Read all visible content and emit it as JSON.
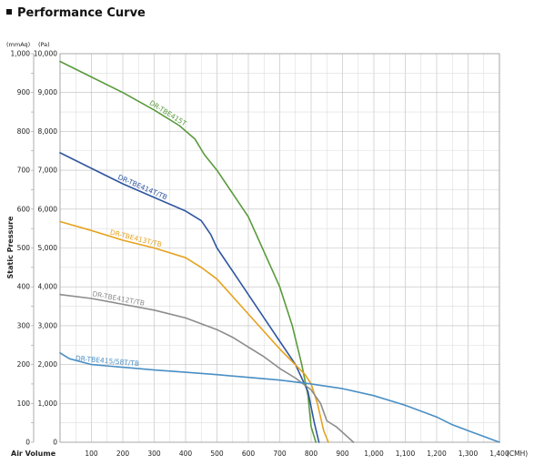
{
  "chart_data": {
    "type": "line",
    "title": "Performance Curve",
    "xlabel": "Air Volume",
    "ylabel": "Static Pressure",
    "x_unit": "(CMH)",
    "y_unit_mm": "(mmAq)",
    "y_unit_pa": "(Pa)",
    "xlim": [
      0,
      1400
    ],
    "ylim": [
      0,
      1000
    ],
    "grid": true,
    "x_ticks": [
      "0",
      "100",
      "200",
      "300",
      "400",
      "500",
      "600",
      "700",
      "800",
      "900",
      "1,000",
      "1,100",
      "1,200",
      "1,300",
      "1,400"
    ],
    "y_ticks_mm": [
      "0",
      "100",
      "200",
      "300",
      "400",
      "500",
      "600",
      "700",
      "800",
      "900",
      "1,000"
    ],
    "y_ticks_pa": [
      "0",
      "1,000",
      "2,000",
      "3,000",
      "4,000",
      "5,000",
      "6,000",
      "7,000",
      "8,000",
      "9,000",
      "10,000"
    ],
    "series": [
      {
        "name": "DR-TBE415T",
        "color": "#5a9a3c",
        "x": [
          0,
          100,
          200,
          300,
          380,
          430,
          460,
          500,
          550,
          600,
          650,
          700,
          740,
          770,
          790,
          800,
          815
        ],
        "y": [
          980,
          940,
          900,
          855,
          815,
          780,
          740,
          700,
          640,
          580,
          490,
          400,
          300,
          200,
          120,
          40,
          0
        ]
      },
      {
        "name": "DR-TBE414T/TB",
        "color": "#2f56a0",
        "x": [
          0,
          100,
          200,
          300,
          400,
          450,
          480,
          500,
          550,
          600,
          650,
          700,
          750,
          790,
          810,
          825
        ],
        "y": [
          745,
          705,
          665,
          630,
          595,
          570,
          535,
          500,
          440,
          380,
          320,
          260,
          200,
          130,
          50,
          0
        ]
      },
      {
        "name": "DR-TBE413T/TB",
        "color": "#e6a21f",
        "x": [
          0,
          100,
          200,
          300,
          400,
          450,
          500,
          600,
          700,
          780,
          800,
          820,
          840,
          855
        ],
        "y": [
          568,
          545,
          520,
          500,
          475,
          450,
          420,
          330,
          240,
          175,
          150,
          100,
          30,
          0
        ]
      },
      {
        "name": "DR-TBE412T/TB",
        "color": "#8c8c8c",
        "x": [
          0,
          100,
          200,
          300,
          400,
          500,
          550,
          600,
          650,
          700,
          750,
          800,
          830,
          850,
          880,
          935
        ],
        "y": [
          380,
          370,
          355,
          340,
          320,
          290,
          270,
          245,
          220,
          190,
          165,
          135,
          100,
          55,
          40,
          0
        ]
      },
      {
        "name": "DR-TBE415/58T/TB",
        "color": "#4a8fc4",
        "x": [
          0,
          30,
          100,
          200,
          300,
          400,
          500,
          600,
          700,
          800,
          900,
          1000,
          1100,
          1200,
          1250,
          1300,
          1350,
          1400
        ],
        "y": [
          230,
          215,
          200,
          193,
          186,
          180,
          174,
          167,
          160,
          150,
          138,
          120,
          95,
          65,
          45,
          30,
          15,
          0
        ]
      }
    ]
  }
}
